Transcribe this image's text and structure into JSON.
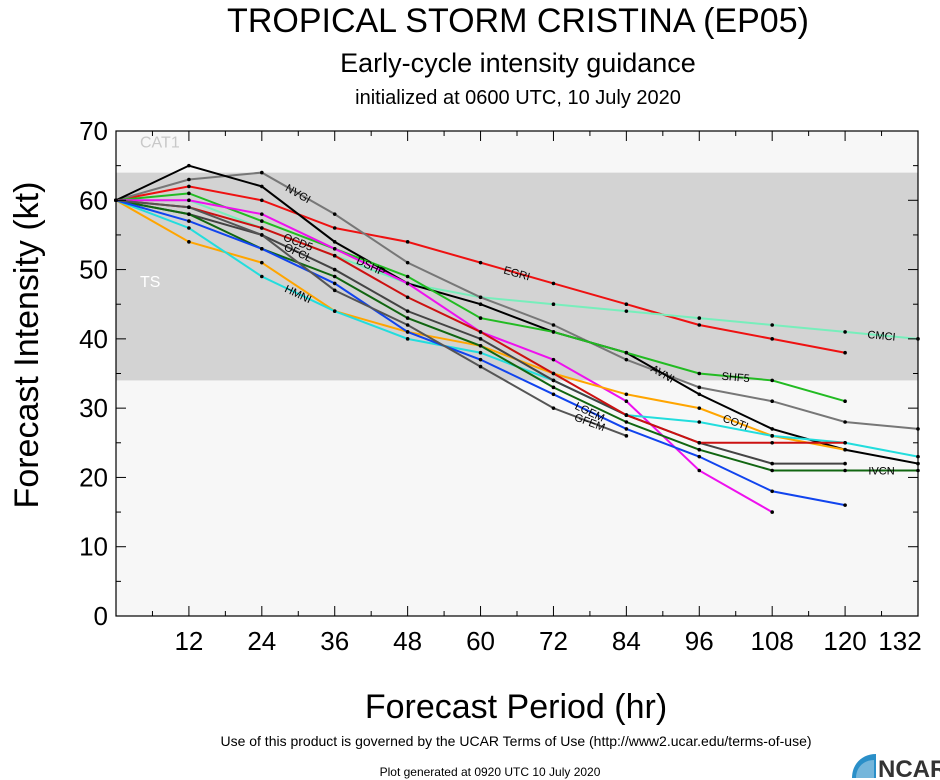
{
  "header": {
    "title": "TROPICAL STORM CRISTINA (EP05)",
    "subtitle": "Early-cycle intensity guidance",
    "init_line": "initialized at 0600 UTC, 10 July 2020"
  },
  "footer": {
    "terms": "Use of this product is governed by the UCAR Terms of Use (http://www2.ucar.edu/terms-of-use)",
    "generated": "Plot generated at 0920 UTC   10 July 2020",
    "logo_text": "NCAR"
  },
  "chart_data": {
    "type": "line",
    "title": "TROPICAL STORM CRISTINA (EP05)",
    "xlabel": "Forecast Period (hr)",
    "ylabel": "Forecast Intensity (kt)",
    "xlim": [
      0,
      132
    ],
    "ylim": [
      0,
      70
    ],
    "xticks": [
      12,
      24,
      36,
      48,
      60,
      72,
      84,
      96,
      108,
      120,
      132
    ],
    "yticks": [
      0,
      10,
      20,
      30,
      40,
      50,
      60,
      70
    ],
    "bands": [
      {
        "label": "TS",
        "from": 34,
        "to": 64,
        "color": "#d3d3d3"
      },
      {
        "label": "CAT1",
        "from": 64,
        "to": 70,
        "color": "#f7f7f7"
      }
    ],
    "series": [
      {
        "name": "EGRI",
        "color": "#ee1111",
        "x": [
          0,
          12,
          24,
          36,
          48,
          60,
          72,
          84,
          96,
          108,
          120
        ],
        "y": [
          60,
          62,
          60,
          56,
          54,
          51,
          48,
          45,
          42,
          40,
          38
        ]
      },
      {
        "name": "CMCI",
        "color": "#77eebb",
        "x": [
          0,
          12,
          24,
          36,
          48,
          60,
          72,
          84,
          96,
          108,
          120,
          132
        ],
        "y": [
          60,
          60,
          56,
          52,
          48,
          46,
          45,
          44,
          43,
          42,
          41,
          40
        ]
      },
      {
        "name": "NVGI",
        "color": "#777777",
        "x": [
          0,
          12,
          24,
          36,
          48,
          60,
          72,
          84,
          96,
          108,
          120,
          132
        ],
        "y": [
          60,
          63,
          64,
          58,
          51,
          46,
          42,
          37,
          33,
          31,
          28,
          27
        ]
      },
      {
        "name": "AVNI",
        "color": "#000000",
        "x": [
          0,
          12,
          24,
          36,
          48,
          60,
          72,
          84,
          96,
          108,
          120,
          132
        ],
        "y": [
          60,
          65,
          62,
          54,
          48,
          45,
          41,
          38,
          32,
          27,
          24,
          22
        ]
      },
      {
        "name": "SHF5",
        "color": "#22bb22",
        "x": [
          0,
          12,
          24,
          36,
          48,
          60,
          72,
          84,
          96,
          108,
          120
        ],
        "y": [
          60,
          61,
          57,
          53,
          49,
          43,
          41,
          38,
          35,
          34,
          31
        ]
      },
      {
        "name": "DSHP",
        "color": "#ee11ee",
        "x": [
          0,
          12,
          24,
          36,
          48,
          60,
          72,
          84,
          96,
          108
        ],
        "y": [
          60,
          60,
          58,
          53,
          48,
          41,
          37,
          31,
          21,
          15
        ]
      },
      {
        "name": "COTI",
        "color": "#ffa500",
        "x": [
          0,
          12,
          24,
          36,
          48,
          60,
          72,
          84,
          96,
          108,
          120
        ],
        "y": [
          60,
          54,
          51,
          44,
          41,
          39,
          35,
          32,
          30,
          26,
          24
        ]
      },
      {
        "name": "HMNI",
        "color": "#22dddd",
        "x": [
          0,
          12,
          24,
          36,
          48,
          60,
          72,
          84,
          96,
          108,
          120,
          132
        ],
        "y": [
          60,
          56,
          49,
          44,
          40,
          38,
          34,
          29,
          28,
          26,
          25,
          23
        ]
      },
      {
        "name": "OFCL",
        "color": "#444444",
        "x": [
          0,
          12,
          24,
          36,
          48,
          60,
          72,
          84,
          96,
          108,
          120
        ],
        "y": [
          60,
          58,
          55,
          50,
          44,
          40,
          34,
          29,
          25,
          22,
          22
        ]
      },
      {
        "name": "OCD5",
        "color": "#cc1111",
        "x": [
          0,
          12,
          24,
          36,
          48,
          60,
          72,
          84,
          96,
          108,
          120
        ],
        "y": [
          60,
          59,
          56,
          52,
          46,
          41,
          35,
          29,
          25,
          25,
          25
        ]
      },
      {
        "name": "IVCN",
        "color": "#116611",
        "x": [
          0,
          12,
          24,
          36,
          48,
          60,
          72,
          84,
          96,
          108,
          120,
          132
        ],
        "y": [
          60,
          58,
          53,
          49,
          43,
          39,
          33,
          28,
          24,
          21,
          21,
          21
        ]
      },
      {
        "name": "LGEM",
        "color": "#1144ee",
        "x": [
          0,
          12,
          24,
          36,
          48,
          60,
          72,
          84,
          96,
          108,
          120
        ],
        "y": [
          60,
          57,
          53,
          48,
          41,
          37,
          32,
          27,
          23,
          18,
          16
        ]
      },
      {
        "name": "GFEM",
        "color": "#555555",
        "x": [
          0,
          12,
          24,
          36,
          48,
          60,
          72,
          84
        ],
        "y": [
          60,
          59,
          55,
          47,
          42,
          36,
          30,
          26
        ]
      }
    ],
    "grid": false,
    "legend": "inline labels on lines"
  }
}
